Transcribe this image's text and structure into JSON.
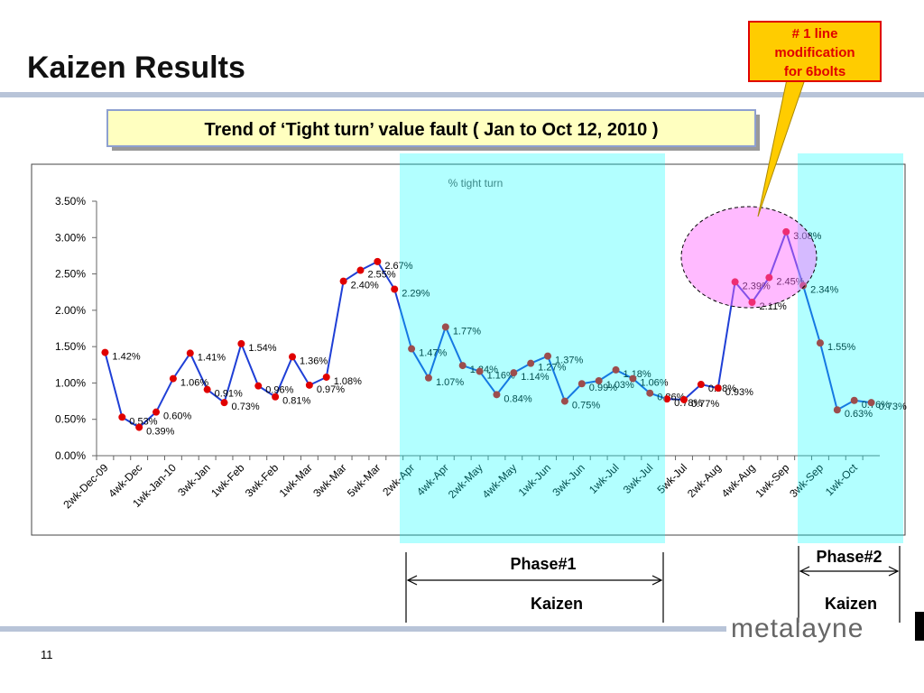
{
  "title": "Kaizen Results",
  "subtitle": "Trend of ‘Tight turn’ value fault ( Jan to Oct 12, 2010 )",
  "callout": [
    "# 1  line",
    "modification",
    "for 6bolts"
  ],
  "phases": [
    {
      "label": "Phase#1",
      "kaizen": "Kaizen"
    },
    {
      "label": "Phase#2",
      "kaizen": "Kaizen"
    }
  ],
  "logo": "metalayne",
  "page_number": "11",
  "chart_data": {
    "type": "line",
    "title": "% tight turn",
    "categories": [
      "2wk-Dec-09",
      null,
      "4wk-Dec",
      null,
      "1wk-Jan-10",
      null,
      "3wk-Jan",
      null,
      "1wk-Feb",
      null,
      "3wk-Feb",
      null,
      "1wk-Mar",
      null,
      "3wk-Mar",
      null,
      "5wk-Mar",
      null,
      "2wk-Apr",
      null,
      "4wk-Apr",
      null,
      "2wk-May",
      null,
      "4wk-May",
      null,
      "1wk-Jun",
      null,
      "3wk-Jun",
      null,
      "1wk-Jul",
      null,
      "3wk-Jul",
      null,
      "5wk-Jul",
      null,
      "2wk-Aug",
      null,
      "4wk-Aug",
      null,
      "1wk-Sep",
      null,
      "3wk-Sep",
      null,
      "1wk-Oct",
      null
    ],
    "series": [
      {
        "name": "% tight turn",
        "color": "#1f3fd6",
        "marker_color": "#e00000",
        "values": [
          1.42,
          0.53,
          0.39,
          0.6,
          1.06,
          1.41,
          0.91,
          0.73,
          1.54,
          0.96,
          0.81,
          1.36,
          0.97,
          1.08,
          2.4,
          2.55,
          2.67,
          2.29,
          1.47,
          1.07,
          1.77,
          1.24,
          1.16,
          0.84,
          1.14,
          1.27,
          1.37,
          0.75,
          0.99,
          1.03,
          1.18,
          1.06,
          0.86,
          0.78,
          0.77,
          0.98,
          0.93,
          2.39,
          2.11,
          2.45,
          3.08,
          2.34,
          1.55,
          0.63,
          0.76,
          0.73
        ],
        "value_labels": [
          "1.42%",
          "0.53%",
          "0.39%",
          "0.60%",
          "1.06%",
          "1.41%",
          "0.91%",
          "0.73%",
          "1.54%",
          "0.96%",
          "0.81%",
          "1.36%",
          "0.97%",
          "1.08%",
          "2.40%",
          "2.55%",
          "2.67%",
          "2.29%",
          "1.47%",
          "1.07%",
          "1.77%",
          "1.24%",
          "1.16%",
          "0.84%",
          "1.14%",
          "1.27%",
          "1.37%",
          "0.75%",
          "0.99%",
          "1.03%",
          "1.18%",
          "1.06%",
          "0.86%",
          "0.78%",
          "0.77%",
          "0.98%",
          "0.93%",
          "2.39%",
          "2.11%",
          "2.45%",
          "3.08%",
          "2.34%",
          "1.55%",
          "0.63%",
          "0.76%",
          "0.73%"
        ]
      }
    ],
    "ylim": [
      0,
      3.5
    ],
    "yticks": [
      {
        "value": 0,
        "label": "0.00%"
      },
      {
        "value": 0.5,
        "label": "0.50%"
      },
      {
        "value": 1,
        "label": "1.00%"
      },
      {
        "value": 1.5,
        "label": "1.50%"
      },
      {
        "value": 2,
        "label": "2.00%"
      },
      {
        "value": 2.5,
        "label": "2.50%"
      },
      {
        "value": 3,
        "label": "3.00%"
      },
      {
        "value": 3.5,
        "label": "3.50%"
      }
    ],
    "grid": false
  }
}
